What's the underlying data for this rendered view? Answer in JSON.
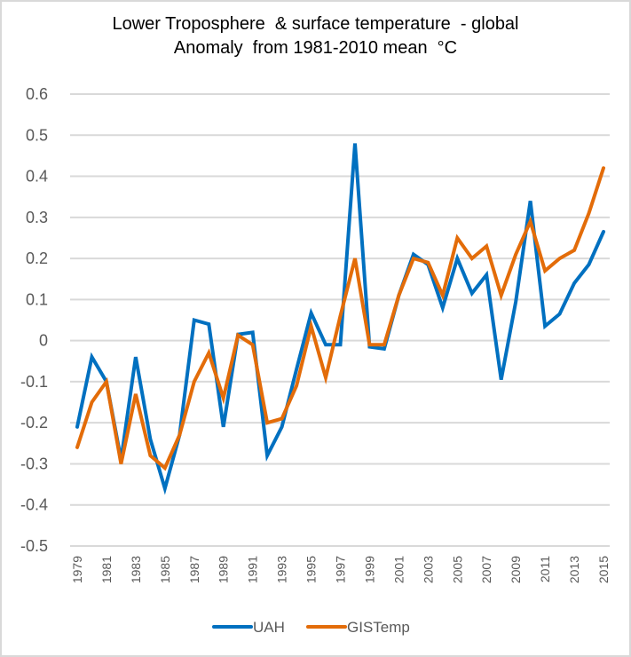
{
  "chart_data": {
    "type": "line",
    "title": "Lower Troposphere  & surface temperature  - global",
    "subtitle": "Anomaly  from 1981-2010 mean  °C",
    "xlabel": "",
    "ylabel": "",
    "ylim": [
      -0.5,
      0.6
    ],
    "yticks": [
      0.6,
      0.5,
      0.4,
      0.3,
      0.2,
      0.1,
      0,
      -0.1,
      -0.2,
      -0.3,
      -0.4,
      -0.5
    ],
    "ytick_labels": [
      "0.6",
      "0.5",
      "0.4",
      "0.3",
      "0.2",
      "0.1",
      "0",
      "-0.1",
      "-0.2",
      "-0.3",
      "-0.4",
      "-0.5"
    ],
    "x": [
      1979,
      1980,
      1981,
      1982,
      1983,
      1984,
      1985,
      1986,
      1987,
      1988,
      1989,
      1990,
      1991,
      1992,
      1993,
      1994,
      1995,
      1996,
      1997,
      1998,
      1999,
      2000,
      2001,
      2002,
      2003,
      2004,
      2005,
      2006,
      2007,
      2008,
      2009,
      2010,
      2011,
      2012,
      2013,
      2014,
      2015
    ],
    "xtick_labels": [
      "1979",
      "1981",
      "1983",
      "1985",
      "1987",
      "1989",
      "1991",
      "1993",
      "1995",
      "1997",
      "1999",
      "2001",
      "2003",
      "2005",
      "2007",
      "2009",
      "2011",
      "2013",
      "2015"
    ],
    "grid": true,
    "legend_position": "bottom",
    "series": [
      {
        "name": "UAH",
        "color": "#0070c0",
        "values": [
          -0.21,
          -0.04,
          -0.1,
          -0.29,
          -0.04,
          -0.24,
          -0.36,
          -0.23,
          0.05,
          0.04,
          -0.21,
          0.015,
          0.02,
          -0.28,
          -0.21,
          -0.07,
          0.067,
          -0.01,
          -0.01,
          0.48,
          -0.015,
          -0.02,
          0.11,
          0.21,
          0.185,
          0.08,
          0.2,
          0.115,
          0.16,
          -0.095,
          0.095,
          0.34,
          0.035,
          0.065,
          0.14,
          0.185,
          0.265
        ]
      },
      {
        "name": "GISTemp",
        "color": "#e36c09",
        "values": [
          -0.26,
          -0.15,
          -0.1,
          -0.3,
          -0.13,
          -0.28,
          -0.31,
          -0.23,
          -0.1,
          -0.03,
          -0.14,
          0.013,
          -0.01,
          -0.2,
          -0.19,
          -0.11,
          0.035,
          -0.09,
          0.06,
          0.2,
          -0.01,
          -0.01,
          0.11,
          0.2,
          0.19,
          0.11,
          0.25,
          0.2,
          0.23,
          0.11,
          0.21,
          0.29,
          0.17,
          0.2,
          0.22,
          0.31,
          0.42
        ]
      }
    ]
  }
}
